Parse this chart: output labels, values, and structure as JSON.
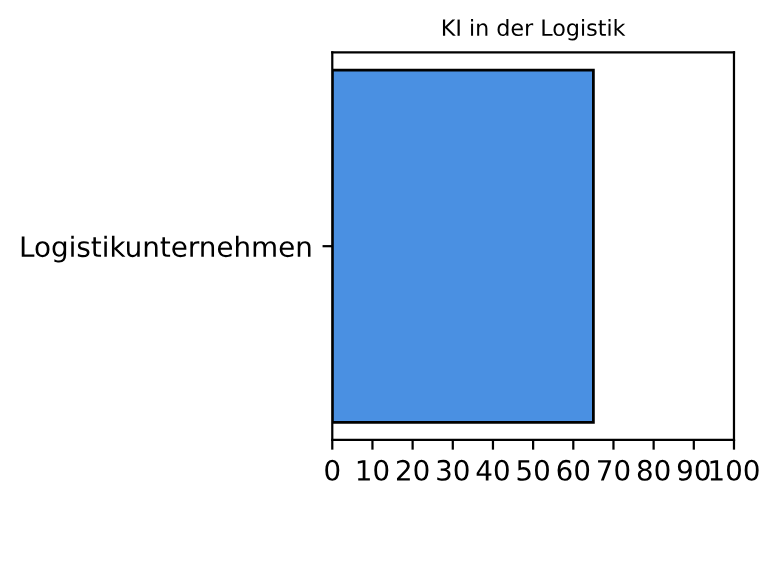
{
  "chart_data": {
    "type": "bar",
    "orientation": "horizontal",
    "title": "KI in der Logistik",
    "categories": [
      "Logistikunternehmen"
    ],
    "values": [
      65
    ],
    "color": "#4a90e2",
    "xlim": [
      0,
      100
    ],
    "xticks": [
      0,
      10,
      20,
      30,
      40,
      50,
      60,
      70,
      80,
      90,
      100
    ],
    "grid": false,
    "legend": false
  }
}
